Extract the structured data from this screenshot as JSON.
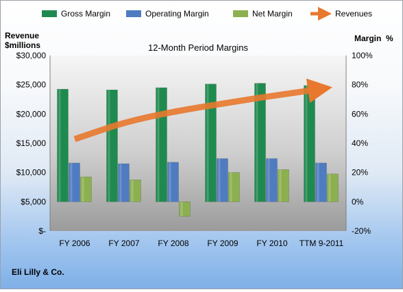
{
  "chart_data": {
    "type": "bar",
    "title": "12-Month Period Margins",
    "y_left_label_line1": "Revenue",
    "y_left_label_line2": "$millions",
    "y_right_label": "Margin  %",
    "footer": "Eli Lilly & Co.",
    "categories": [
      "FY 2006",
      "FY 2007",
      "FY 2008",
      "FY 2009",
      "FY 2010",
      "TTM 9-2011"
    ],
    "left_axis": {
      "min": 0,
      "max": 30000,
      "ticks": [
        0,
        5000,
        10000,
        15000,
        20000,
        25000,
        30000
      ],
      "tick_labels": [
        "$-",
        "$5,000",
        "$10,000",
        "$15,000",
        "$20,000",
        "$25,000",
        "$30,000"
      ]
    },
    "right_axis": {
      "min": -20,
      "max": 100,
      "ticks": [
        -20,
        0,
        20,
        40,
        60,
        80,
        100
      ],
      "tick_labels": [
        "-20%",
        "0%",
        "20%",
        "40%",
        "60%",
        "80%",
        "100%"
      ]
    },
    "series": [
      {
        "name": "Gross Margin",
        "axis": "right",
        "color": "#1e8a4f",
        "values": [
          77,
          76.5,
          78,
          80.5,
          81,
          79.5
        ]
      },
      {
        "name": "Operating Margin",
        "axis": "right",
        "color": "#4f7bc0",
        "values": [
          26.5,
          26,
          27,
          29.5,
          29.5,
          26.5
        ]
      },
      {
        "name": "Net Margin",
        "axis": "right",
        "color": "#8cb050",
        "values": [
          17,
          15,
          -10,
          20,
          22,
          19
        ]
      }
    ],
    "line_series": {
      "name": "Revenues",
      "axis": "left",
      "color": "#e8782e",
      "values": [
        15700,
        18600,
        20400,
        21800,
        23100,
        24300
      ]
    },
    "legend_position": "top",
    "grid": false
  }
}
